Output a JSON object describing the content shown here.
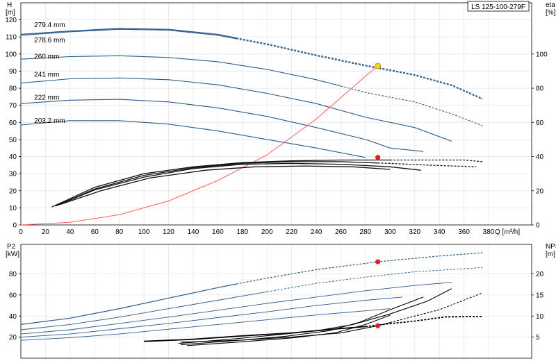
{
  "model_label": "LS 125-100-279F",
  "colors": {
    "curve": "#2b5a8c",
    "system": "#ff5a5a",
    "eff": "#111111",
    "npsh": "#000000",
    "op_red": "#e02020",
    "op_yellow": "#ffd21e"
  },
  "chart_data": [
    {
      "type": "line",
      "name": "head",
      "x_ticks": [
        0,
        20,
        40,
        60,
        80,
        100,
        120,
        140,
        160,
        180,
        200,
        220,
        240,
        260,
        280,
        300,
        320,
        340,
        360,
        380
      ],
      "xlabel": "Q [m³/h]",
      "xlim": [
        0,
        415
      ],
      "ylabel_line1": "H",
      "ylabel_line2": "[m]",
      "ylim": [
        0,
        130
      ],
      "y_ticks": [
        0,
        10,
        20,
        30,
        40,
        50,
        60,
        70,
        80,
        90,
        100,
        110,
        120
      ],
      "y2label_line1": "eta",
      "y2label_line2": "[%]",
      "y2lim": [
        0,
        130
      ],
      "y2_ticks": [
        0,
        20,
        40,
        60,
        80,
        100
      ],
      "grid": true,
      "series": [
        {
          "name": "279.4 mm",
          "label_at": [
            8,
            117
          ],
          "points": [
            [
              0,
              111.5
            ],
            [
              40,
              113.5
            ],
            [
              80,
              115
            ],
            [
              120,
              114.5
            ],
            [
              160,
              111.5
            ],
            [
              200,
              106
            ],
            [
              240,
              99.5
            ],
            [
              280,
              93.5
            ],
            [
              320,
              88
            ],
            [
              350,
              82
            ],
            [
              375,
              74
            ]
          ],
          "solid_until": 175
        },
        {
          "name": "278.6 mm",
          "label_at": [
            8,
            108
          ],
          "points": [
            [
              0,
              111
            ],
            [
              40,
              113
            ],
            [
              80,
              114.5
            ],
            [
              120,
              114
            ],
            [
              160,
              111
            ],
            [
              200,
              105.5
            ],
            [
              240,
              99
            ],
            [
              280,
              93
            ],
            [
              320,
              87.5
            ],
            [
              350,
              81.5
            ],
            [
              375,
              73.5
            ]
          ],
          "solid_until": 175
        },
        {
          "name": "260 mm",
          "label_at": [
            8,
            98.5
          ],
          "points": [
            [
              0,
              97
            ],
            [
              40,
              98.5
            ],
            [
              80,
              99
            ],
            [
              120,
              98
            ],
            [
              160,
              95.5
            ],
            [
              200,
              91
            ],
            [
              240,
              85
            ],
            [
              280,
              77.5
            ],
            [
              320,
              72
            ],
            [
              350,
              65
            ],
            [
              375,
              58
            ]
          ],
          "solid_until": 260
        },
        {
          "name": "241 mm",
          "label_at": [
            8,
            88
          ],
          "points": [
            [
              0,
              83
            ],
            [
              40,
              85.5
            ],
            [
              80,
              86
            ],
            [
              120,
              85
            ],
            [
              160,
              82
            ],
            [
              200,
              77
            ],
            [
              240,
              71
            ],
            [
              280,
              63
            ],
            [
              320,
              57
            ],
            [
              350,
              49
            ]
          ],
          "solid_until": 350
        },
        {
          "name": "222 mm",
          "label_at": [
            8,
            74.5
          ],
          "points": [
            [
              0,
              71
            ],
            [
              40,
              73
            ],
            [
              80,
              73.5
            ],
            [
              120,
              72
            ],
            [
              160,
              68.5
            ],
            [
              200,
              63.5
            ],
            [
              240,
              57
            ],
            [
              280,
              50
            ],
            [
              300,
              45
            ],
            [
              327,
              43
            ]
          ],
          "solid_until": 327
        },
        {
          "name": "203.2 mm",
          "label_at": [
            8,
            61
          ],
          "points": [
            [
              0,
              58.5
            ],
            [
              40,
              61
            ],
            [
              80,
              61
            ],
            [
              120,
              59
            ],
            [
              160,
              55
            ],
            [
              200,
              50
            ],
            [
              240,
              45
            ],
            [
              280,
              39.5
            ]
          ],
          "solid_until": 300
        }
      ],
      "system_curve": [
        [
          0,
          0
        ],
        [
          40,
          1.5
        ],
        [
          80,
          6
        ],
        [
          120,
          14
        ],
        [
          160,
          26
        ],
        [
          200,
          41
        ],
        [
          240,
          62
        ],
        [
          280,
          87
        ],
        [
          290,
          93
        ]
      ],
      "efficiency": [
        {
          "points": [
            [
              25,
              10.5
            ],
            [
              60,
              22
            ],
            [
              100,
              30
            ],
            [
              140,
              34
            ],
            [
              180,
              36.5
            ],
            [
              220,
              37.5
            ],
            [
              260,
              38
            ],
            [
              300,
              38
            ],
            [
              325,
              38
            ],
            [
              360,
              38
            ],
            [
              375,
              37
            ]
          ],
          "solid_until": 300
        },
        {
          "points": [
            [
              28,
              11
            ],
            [
              60,
              21
            ],
            [
              100,
              29
            ],
            [
              140,
              33.5
            ],
            [
              180,
              36
            ],
            [
              220,
              37
            ],
            [
              260,
              37
            ],
            [
              300,
              36
            ],
            [
              330,
              35
            ],
            [
              370,
              34
            ]
          ],
          "solid_until": 290
        },
        {
          "points": [
            [
              30,
              11.5
            ],
            [
              60,
              20.5
            ],
            [
              100,
              28
            ],
            [
              140,
              33
            ],
            [
              180,
              35.5
            ],
            [
              220,
              36
            ],
            [
              260,
              35.5
            ],
            [
              300,
              34
            ],
            [
              325,
              32
            ]
          ],
          "solid_until": 325
        },
        {
          "points": [
            [
              32,
              12
            ],
            [
              65,
              20
            ],
            [
              105,
              27.5
            ],
            [
              150,
              32
            ],
            [
              190,
              34
            ],
            [
              230,
              34.5
            ],
            [
              270,
              34
            ],
            [
              300,
              32.5
            ]
          ],
          "solid_until": 300
        }
      ],
      "op_points": [
        {
          "x": 290,
          "y": 93,
          "color": "yellow"
        },
        {
          "x": 290,
          "y": 39.5,
          "color": "red"
        }
      ]
    },
    {
      "type": "line",
      "name": "power_npsh",
      "x_ticks": [
        0,
        20,
        40,
        60,
        80,
        100,
        120,
        140,
        160,
        180,
        200,
        220,
        240,
        260,
        280,
        300,
        320,
        340,
        360,
        380
      ],
      "xlim": [
        0,
        415
      ],
      "ylabel_line1": "P2",
      "ylabel_line2": "[kW]",
      "ylim": [
        0,
        108
      ],
      "y_ticks": [
        20,
        40,
        60,
        80
      ],
      "y2label_line1": "NPSH",
      "y2label_line2": "[m]",
      "y2lim": [
        0,
        27
      ],
      "y2_ticks": [
        5,
        10,
        15,
        20
      ],
      "grid": true,
      "power": [
        {
          "points": [
            [
              0,
              32
            ],
            [
              40,
              38
            ],
            [
              80,
              47
            ],
            [
              120,
              57
            ],
            [
              160,
              67
            ],
            [
              200,
              76
            ],
            [
              240,
              84
            ],
            [
              290,
              91.5
            ],
            [
              340,
              97
            ],
            [
              375,
              100
            ]
          ],
          "solid_until": 175
        },
        {
          "points": [
            [
              0,
              27
            ],
            [
              40,
              32
            ],
            [
              80,
              39
            ],
            [
              120,
              47
            ],
            [
              160,
              55
            ],
            [
              200,
              63
            ],
            [
              240,
              71
            ],
            [
              280,
              77
            ],
            [
              320,
              82
            ],
            [
              375,
              86
            ]
          ],
          "solid_until": 200
        },
        {
          "points": [
            [
              0,
              23
            ],
            [
              40,
              27
            ],
            [
              80,
              33
            ],
            [
              120,
              39
            ],
            [
              160,
              45.5
            ],
            [
              200,
              52
            ],
            [
              240,
              58
            ],
            [
              280,
              64
            ],
            [
              320,
              69
            ],
            [
              350,
              72
            ]
          ],
          "solid_until": 350
        },
        {
          "points": [
            [
              0,
              20
            ],
            [
              40,
              23
            ],
            [
              80,
              28
            ],
            [
              120,
              33
            ],
            [
              160,
              38.5
            ],
            [
              200,
              44
            ],
            [
              240,
              50
            ],
            [
              280,
              55
            ],
            [
              310,
              58
            ]
          ],
          "solid_until": 310
        },
        {
          "points": [
            [
              0,
              17
            ],
            [
              40,
              19.5
            ],
            [
              80,
              23
            ],
            [
              120,
              27.5
            ],
            [
              160,
              32
            ],
            [
              200,
              36.5
            ],
            [
              240,
              41
            ],
            [
              280,
              45
            ],
            [
              300,
              47
            ]
          ],
          "solid_until": 300
        }
      ],
      "npsh": [
        {
          "points": [
            [
              100,
              4
            ],
            [
              140,
              4.5
            ],
            [
              180,
              5.3
            ],
            [
              220,
              6
            ],
            [
              250,
              6.8
            ],
            [
              280,
              7.5
            ],
            [
              300,
              8.2
            ],
            [
              320,
              8.8
            ],
            [
              345,
              9.8
            ],
            [
              370,
              9.9
            ],
            [
              375,
              9.9
            ]
          ],
          "solid_until": 280
        },
        {
          "points": [
            [
              128,
              3.5
            ],
            [
              170,
              4.5
            ],
            [
              210,
              5.6
            ],
            [
              240,
              6.5
            ],
            [
              270,
              8
            ],
            [
              300,
              10.5
            ],
            [
              330,
              13.5
            ],
            [
              350,
              16.5
            ]
          ],
          "solid_until": 350
        },
        {
          "points": [
            [
              130,
              3.2
            ],
            [
              175,
              4.2
            ],
            [
              215,
              5.2
            ],
            [
              250,
              6.5
            ],
            [
              275,
              8.5
            ],
            [
              300,
              11.5
            ],
            [
              327,
              14.5
            ]
          ],
          "solid_until": 327
        },
        {
          "points": [
            [
              135,
              3
            ],
            [
              180,
              3.9
            ],
            [
              220,
              4.8
            ],
            [
              255,
              6
            ],
            [
              280,
              8
            ],
            [
              300,
              10.2
            ]
          ],
          "solid_until": 300
        },
        {
          "points": [
            [
              130,
              3.8
            ],
            [
              180,
              4.3
            ],
            [
              220,
              5
            ],
            [
              260,
              6
            ],
            [
              290,
              7.7
            ],
            [
              320,
              10
            ],
            [
              340,
              11.5
            ],
            [
              375,
              15.5
            ]
          ],
          "solid_until": 300
        }
      ],
      "op_points": [
        {
          "x": 290,
          "y": 91.5,
          "axis": "left",
          "color": "red"
        },
        {
          "x": 290,
          "y": 7.7,
          "axis": "right",
          "color": "red"
        }
      ]
    }
  ]
}
